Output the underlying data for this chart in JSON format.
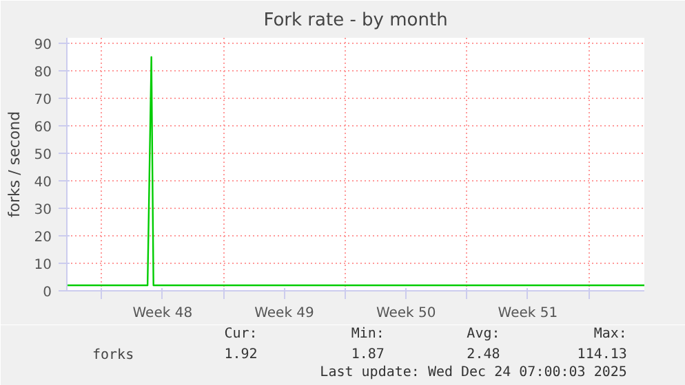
{
  "chart_data": {
    "type": "line",
    "title": "Fork rate - by month",
    "ylabel": "forks / second",
    "x": [
      "2025-11-22T00:00",
      "2025-11-26T15:22",
      "2025-11-26T20:38",
      "2025-11-26T23:31",
      "2025-12-25T04:48"
    ],
    "series": [
      {
        "name": "forks",
        "color": "#00cc00",
        "values": [
          2,
          2,
          85,
          2,
          2
        ]
      }
    ],
    "xlim": [
      "2025-11-22T00:00",
      "2025-12-25T04:48"
    ],
    "xticks": [
      {
        "value": "2025-11-24",
        "label": null
      },
      {
        "value": "2025-11-27T12:00",
        "label": "Week 48"
      },
      {
        "value": "2025-12-01",
        "label": null
      },
      {
        "value": "2025-12-04T12:00",
        "label": "Week 49"
      },
      {
        "value": "2025-12-08",
        "label": null
      },
      {
        "value": "2025-12-11T12:00",
        "label": "Week 50"
      },
      {
        "value": "2025-12-15",
        "label": null
      },
      {
        "value": "2025-12-18T12:00",
        "label": "Week 51"
      },
      {
        "value": "2025-12-22",
        "label": null
      }
    ],
    "ylim": [
      0,
      92
    ],
    "yticks": [
      0,
      10,
      20,
      30,
      40,
      50,
      60,
      70,
      80,
      90
    ],
    "grid": true,
    "legend": "bottom left",
    "marker": "none",
    "line_style": "solid",
    "annotations": [
      "Cur:",
      "Min:",
      "Avg:",
      "Max:",
      "1.92",
      "1.87",
      "2.48",
      "114.13",
      "Last update: Wed Dec 24 07:00:03 2025"
    ]
  }
}
